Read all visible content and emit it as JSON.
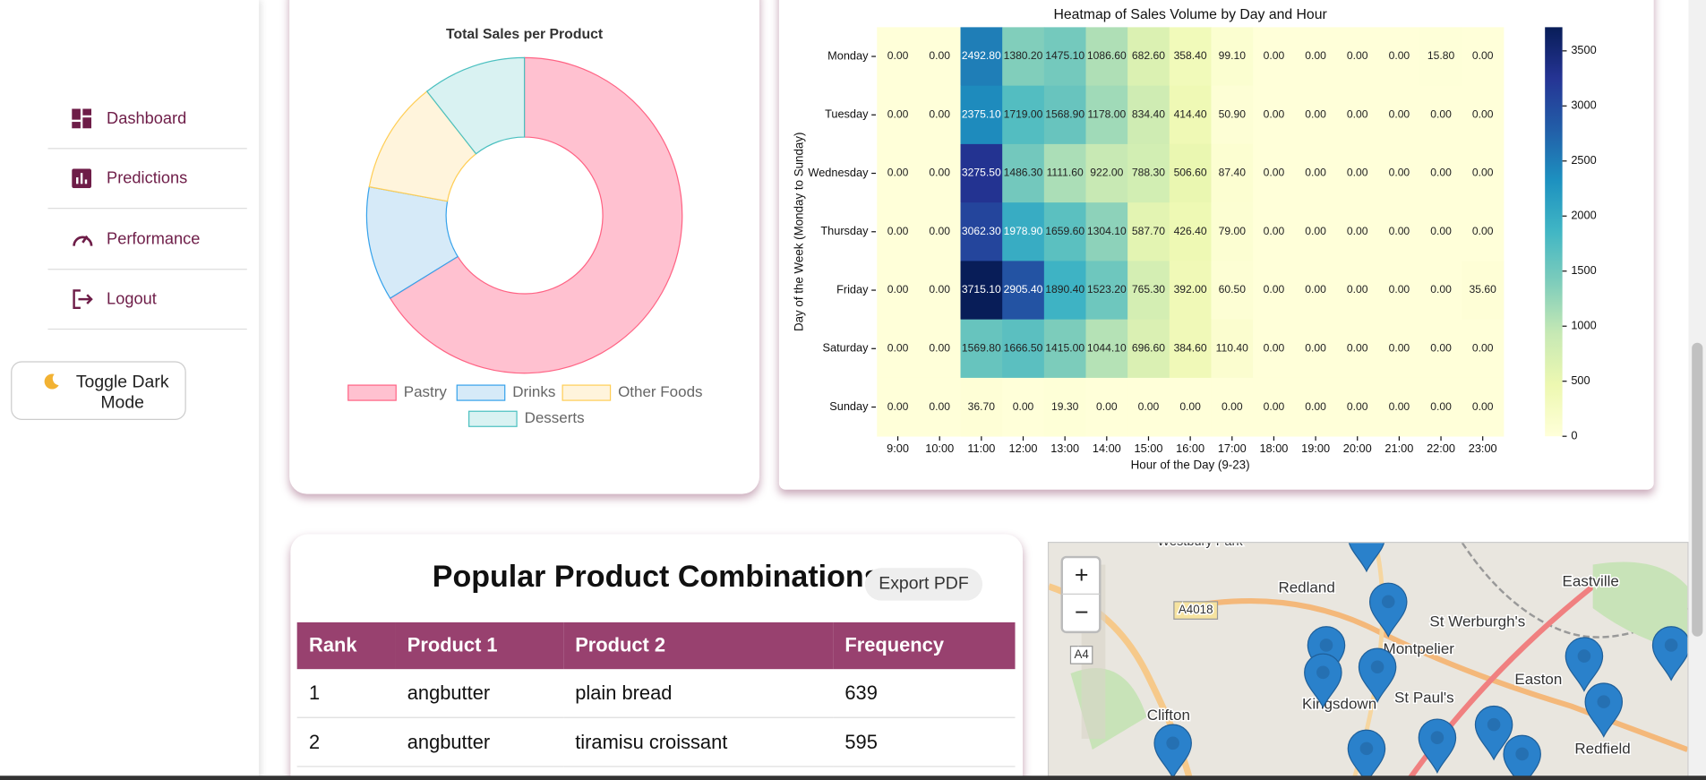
{
  "sidebar": {
    "nav": [
      "Dashboard",
      "Predictions",
      "Performance",
      "Logout"
    ],
    "toggle": "Toggle Dark Mode"
  },
  "chart_data": [
    {
      "type": "pie",
      "title": "Total Sales per Product",
      "categories": [
        "Pastry",
        "Drinks",
        "Other Foods",
        "Desserts"
      ],
      "values": [
        66.2,
        11.7,
        11.5,
        10.6
      ],
      "colors": [
        "#ffc1d0",
        "#d6eaf8",
        "#fff4dc",
        "#d9f2f2"
      ],
      "border_colors": [
        "#ff6384",
        "#36a2eb",
        "#ffce56",
        "#4bc0c0"
      ]
    },
    {
      "type": "heatmap",
      "title": "Heatmap of Sales Volume by Day and Hour",
      "xlabel": "Hour of the Day (9-23)",
      "ylabel": "Day of the Week (Monday to Sunday)",
      "x": [
        "9:00",
        "10:00",
        "11:00",
        "12:00",
        "13:00",
        "14:00",
        "15:00",
        "16:00",
        "17:00",
        "18:00",
        "19:00",
        "20:00",
        "21:00",
        "22:00",
        "23:00"
      ],
      "y": [
        "Monday",
        "Tuesday",
        "Wednesday",
        "Thursday",
        "Friday",
        "Saturday",
        "Sunday"
      ],
      "values": [
        [
          0,
          0,
          2492.8,
          1380.2,
          1475.1,
          1086.6,
          682.6,
          358.4,
          99.1,
          0,
          0,
          0,
          0,
          15.8,
          0
        ],
        [
          0,
          0,
          2375.1,
          1719,
          1568.9,
          1178,
          834.4,
          414.4,
          50.9,
          0,
          0,
          0,
          0,
          0,
          0
        ],
        [
          0,
          0,
          3275.5,
          1486.3,
          1111.6,
          922,
          788.3,
          506.6,
          87.4,
          0,
          0,
          0,
          0,
          0,
          0
        ],
        [
          0,
          0,
          3062.3,
          1978.9,
          1659.6,
          1304.1,
          587.7,
          426.4,
          79,
          0,
          0,
          0,
          0,
          0,
          0
        ],
        [
          0,
          0,
          3715.1,
          2905.4,
          1890.4,
          1523.2,
          765.3,
          392,
          60.5,
          0,
          0,
          0,
          0,
          0,
          35.6
        ],
        [
          0,
          0,
          1569.8,
          1666.5,
          1415,
          1044.1,
          696.6,
          384.6,
          110.4,
          0,
          0,
          0,
          0,
          0,
          0
        ],
        [
          0,
          0,
          36.7,
          0,
          19.3,
          0,
          0,
          0,
          0,
          0,
          0,
          0,
          0,
          0,
          0
        ]
      ],
      "value_labels": [
        [
          "0.00",
          "0.00",
          "2492.80",
          "1380.20",
          "1475.10",
          "1086.60",
          "682.60",
          "358.40",
          "99.10",
          "0.00",
          "0.00",
          "0.00",
          "0.00",
          "15.80",
          "0.00"
        ],
        [
          "0.00",
          "0.00",
          "2375.10",
          "1719.00",
          "1568.90",
          "1178.00",
          "834.40",
          "414.40",
          "50.90",
          "0.00",
          "0.00",
          "0.00",
          "0.00",
          "0.00",
          "0.00"
        ],
        [
          "0.00",
          "0.00",
          "3275.50",
          "1486.30",
          "1111.60",
          "922.00",
          "788.30",
          "506.60",
          "87.40",
          "0.00",
          "0.00",
          "0.00",
          "0.00",
          "0.00",
          "0.00"
        ],
        [
          "0.00",
          "0.00",
          "3062.30",
          "1978.90",
          "1659.60",
          "1304.10",
          "587.70",
          "426.40",
          "79.00",
          "0.00",
          "0.00",
          "0.00",
          "0.00",
          "0.00",
          "0.00"
        ],
        [
          "0.00",
          "0.00",
          "3715.10",
          "2905.40",
          "1890.40",
          "1523.20",
          "765.30",
          "392.00",
          "60.50",
          "0.00",
          "0.00",
          "0.00",
          "0.00",
          "0.00",
          "35.60"
        ],
        [
          "0.00",
          "0.00",
          "1569.80",
          "1666.50",
          "1415.00",
          "1044.10",
          "696.60",
          "384.60",
          "110.40",
          "0.00",
          "0.00",
          "0.00",
          "0.00",
          "0.00",
          "0.00"
        ],
        [
          "0.00",
          "0.00",
          "36.70",
          "0.00",
          "19.30",
          "0.00",
          "0.00",
          "0.00",
          "0.00",
          "0.00",
          "0.00",
          "0.00",
          "0.00",
          "0.00",
          "0.00"
        ]
      ],
      "colormap": "YlGnBu",
      "zlim": [
        0,
        3715.1
      ],
      "zticks": [
        0,
        500,
        1000,
        1500,
        2000,
        2500,
        3000,
        3500
      ]
    }
  ],
  "table": {
    "title": "Popular Product Combinations",
    "export": "Export PDF",
    "columns": [
      "Rank",
      "Product 1",
      "Product 2",
      "Frequency"
    ],
    "rows": [
      [
        1,
        "angbutter",
        "plain bread",
        639
      ],
      [
        2,
        "angbutter",
        "tiramisu croissant",
        595
      ]
    ]
  },
  "map": {
    "zoom_in": "+",
    "zoom_out": "−",
    "labels": [
      "Westbury Park",
      "Redland",
      "Eastville",
      "St Werburgh's",
      "Montpelier",
      "Easton",
      "Kingsdown",
      "St Paul's",
      "Clifton",
      "Redfield",
      "A4018",
      "A4"
    ]
  }
}
